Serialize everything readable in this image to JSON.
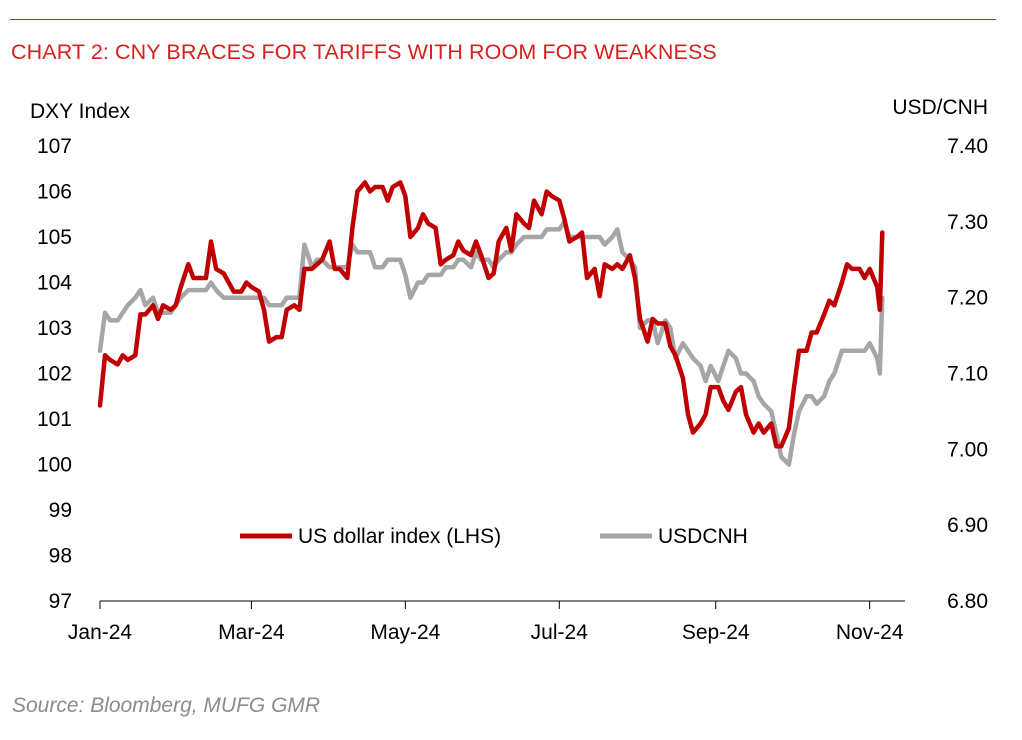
{
  "header": {
    "title": "CHART 2: CNY BRACES FOR TARIFFS WITH ROOM FOR WEAKNESS"
  },
  "footer": {
    "source": "Source: Bloomberg, MUFG GMR"
  },
  "colors": {
    "accent": "#d9201f",
    "dxy": "#c00000",
    "usdcnh": "#a6a6a6",
    "source_text": "#8c8c8c"
  },
  "chart_data": {
    "type": "line",
    "title": "CHART 2: CNY BRACES FOR TARIFFS WITH ROOM FOR WEAKNESS",
    "ylabel_left": "DXY Index",
    "ylabel_right": "USD/CNH",
    "x_ticks": [
      "Jan-24",
      "Mar-24",
      "May-24",
      "Jul-24",
      "Sep-24",
      "Nov-24"
    ],
    "y_left_ticks": [
      "107",
      "106",
      "105",
      "104",
      "103",
      "102",
      "101",
      "100",
      "99",
      "98",
      "97"
    ],
    "y_right_ticks": [
      "7.40",
      "7.30",
      "7.20",
      "7.10",
      "7.00",
      "6.90",
      "6.80"
    ],
    "y_left_lim": [
      97,
      107
    ],
    "y_right_lim": [
      6.8,
      7.4
    ],
    "x_range": [
      "2024-01-01",
      "2024-11-15"
    ],
    "legend_position": "lower-center",
    "grid": false,
    "series": [
      {
        "name": "US dollar index (LHS)",
        "axis": "left",
        "color": "#c00000",
        "points": [
          [
            "2024-01-01",
            101.3
          ],
          [
            "2024-01-03",
            102.4
          ],
          [
            "2024-01-05",
            102.3
          ],
          [
            "2024-01-08",
            102.2
          ],
          [
            "2024-01-10",
            102.4
          ],
          [
            "2024-01-12",
            102.3
          ],
          [
            "2024-01-15",
            102.4
          ],
          [
            "2024-01-17",
            103.3
          ],
          [
            "2024-01-19",
            103.3
          ],
          [
            "2024-01-22",
            103.5
          ],
          [
            "2024-01-24",
            103.2
          ],
          [
            "2024-01-26",
            103.5
          ],
          [
            "2024-01-29",
            103.4
          ],
          [
            "2024-01-31",
            103.5
          ],
          [
            "2024-02-02",
            103.9
          ],
          [
            "2024-02-05",
            104.4
          ],
          [
            "2024-02-07",
            104.1
          ],
          [
            "2024-02-09",
            104.1
          ],
          [
            "2024-02-12",
            104.1
          ],
          [
            "2024-02-14",
            104.9
          ],
          [
            "2024-02-16",
            104.3
          ],
          [
            "2024-02-19",
            104.2
          ],
          [
            "2024-02-21",
            104.0
          ],
          [
            "2024-02-23",
            103.8
          ],
          [
            "2024-02-26",
            103.8
          ],
          [
            "2024-02-28",
            104.0
          ],
          [
            "2024-03-01",
            103.9
          ],
          [
            "2024-03-04",
            103.8
          ],
          [
            "2024-03-06",
            103.4
          ],
          [
            "2024-03-08",
            102.7
          ],
          [
            "2024-03-11",
            102.8
          ],
          [
            "2024-03-13",
            102.8
          ],
          [
            "2024-03-15",
            103.4
          ],
          [
            "2024-03-18",
            103.5
          ],
          [
            "2024-03-20",
            103.4
          ],
          [
            "2024-03-22",
            104.3
          ],
          [
            "2024-03-25",
            104.3
          ],
          [
            "2024-03-27",
            104.4
          ],
          [
            "2024-03-29",
            104.5
          ],
          [
            "2024-04-01",
            104.9
          ],
          [
            "2024-04-03",
            104.3
          ],
          [
            "2024-04-05",
            104.3
          ],
          [
            "2024-04-08",
            104.1
          ],
          [
            "2024-04-10",
            105.2
          ],
          [
            "2024-04-12",
            106.0
          ],
          [
            "2024-04-15",
            106.2
          ],
          [
            "2024-04-17",
            106.0
          ],
          [
            "2024-04-19",
            106.1
          ],
          [
            "2024-04-22",
            106.1
          ],
          [
            "2024-04-24",
            105.8
          ],
          [
            "2024-04-26",
            106.1
          ],
          [
            "2024-04-29",
            106.2
          ],
          [
            "2024-05-01",
            105.9
          ],
          [
            "2024-05-03",
            105.0
          ],
          [
            "2024-05-06",
            105.2
          ],
          [
            "2024-05-08",
            105.5
          ],
          [
            "2024-05-10",
            105.3
          ],
          [
            "2024-05-13",
            105.2
          ],
          [
            "2024-05-15",
            104.4
          ],
          [
            "2024-05-17",
            104.5
          ],
          [
            "2024-05-20",
            104.6
          ],
          [
            "2024-05-22",
            104.9
          ],
          [
            "2024-05-24",
            104.7
          ],
          [
            "2024-05-27",
            104.6
          ],
          [
            "2024-05-29",
            104.9
          ],
          [
            "2024-05-31",
            104.6
          ],
          [
            "2024-06-03",
            104.1
          ],
          [
            "2024-06-05",
            104.2
          ],
          [
            "2024-06-07",
            104.9
          ],
          [
            "2024-06-10",
            105.2
          ],
          [
            "2024-06-12",
            104.7
          ],
          [
            "2024-06-14",
            105.5
          ],
          [
            "2024-06-17",
            105.3
          ],
          [
            "2024-06-19",
            105.2
          ],
          [
            "2024-06-21",
            105.8
          ],
          [
            "2024-06-24",
            105.5
          ],
          [
            "2024-06-26",
            106.0
          ],
          [
            "2024-06-28",
            105.9
          ],
          [
            "2024-07-01",
            105.8
          ],
          [
            "2024-07-03",
            105.4
          ],
          [
            "2024-07-05",
            104.9
          ],
          [
            "2024-07-08",
            105.0
          ],
          [
            "2024-07-10",
            105.1
          ],
          [
            "2024-07-12",
            104.1
          ],
          [
            "2024-07-15",
            104.3
          ],
          [
            "2024-07-17",
            103.7
          ],
          [
            "2024-07-19",
            104.4
          ],
          [
            "2024-07-22",
            104.3
          ],
          [
            "2024-07-24",
            104.4
          ],
          [
            "2024-07-26",
            104.3
          ],
          [
            "2024-07-29",
            104.6
          ],
          [
            "2024-07-31",
            104.1
          ],
          [
            "2024-08-02",
            103.2
          ],
          [
            "2024-08-05",
            102.7
          ],
          [
            "2024-08-07",
            103.2
          ],
          [
            "2024-08-09",
            103.1
          ],
          [
            "2024-08-12",
            103.1
          ],
          [
            "2024-08-14",
            102.6
          ],
          [
            "2024-08-16",
            102.4
          ],
          [
            "2024-08-19",
            101.9
          ],
          [
            "2024-08-21",
            101.1
          ],
          [
            "2024-08-23",
            100.7
          ],
          [
            "2024-08-26",
            100.9
          ],
          [
            "2024-08-28",
            101.1
          ],
          [
            "2024-08-30",
            101.7
          ],
          [
            "2024-09-02",
            101.7
          ],
          [
            "2024-09-04",
            101.4
          ],
          [
            "2024-09-06",
            101.2
          ],
          [
            "2024-09-09",
            101.6
          ],
          [
            "2024-09-11",
            101.7
          ],
          [
            "2024-09-13",
            101.1
          ],
          [
            "2024-09-16",
            100.7
          ],
          [
            "2024-09-18",
            100.9
          ],
          [
            "2024-09-20",
            100.7
          ],
          [
            "2024-09-23",
            100.9
          ],
          [
            "2024-09-25",
            100.4
          ],
          [
            "2024-09-27",
            100.4
          ],
          [
            "2024-09-30",
            100.8
          ],
          [
            "2024-10-02",
            101.7
          ],
          [
            "2024-10-04",
            102.5
          ],
          [
            "2024-10-07",
            102.5
          ],
          [
            "2024-10-09",
            102.9
          ],
          [
            "2024-10-11",
            102.9
          ],
          [
            "2024-10-14",
            103.3
          ],
          [
            "2024-10-16",
            103.6
          ],
          [
            "2024-10-18",
            103.5
          ],
          [
            "2024-10-21",
            104.0
          ],
          [
            "2024-10-23",
            104.4
          ],
          [
            "2024-10-25",
            104.3
          ],
          [
            "2024-10-28",
            104.3
          ],
          [
            "2024-10-30",
            104.1
          ],
          [
            "2024-11-01",
            104.3
          ],
          [
            "2024-11-04",
            103.9
          ],
          [
            "2024-11-05",
            103.4
          ],
          [
            "2024-11-06",
            105.1
          ]
        ]
      },
      {
        "name": "USDCNH",
        "axis": "right",
        "color": "#a6a6a6",
        "points": [
          [
            "2024-01-01",
            7.13
          ],
          [
            "2024-01-03",
            7.18
          ],
          [
            "2024-01-05",
            7.17
          ],
          [
            "2024-01-08",
            7.17
          ],
          [
            "2024-01-10",
            7.18
          ],
          [
            "2024-01-12",
            7.19
          ],
          [
            "2024-01-15",
            7.2
          ],
          [
            "2024-01-17",
            7.21
          ],
          [
            "2024-01-19",
            7.19
          ],
          [
            "2024-01-22",
            7.2
          ],
          [
            "2024-01-24",
            7.18
          ],
          [
            "2024-01-26",
            7.18
          ],
          [
            "2024-01-29",
            7.18
          ],
          [
            "2024-01-31",
            7.19
          ],
          [
            "2024-02-02",
            7.2
          ],
          [
            "2024-02-05",
            7.21
          ],
          [
            "2024-02-07",
            7.21
          ],
          [
            "2024-02-09",
            7.21
          ],
          [
            "2024-02-12",
            7.21
          ],
          [
            "2024-02-14",
            7.22
          ],
          [
            "2024-02-16",
            7.21
          ],
          [
            "2024-02-19",
            7.2
          ],
          [
            "2024-02-21",
            7.2
          ],
          [
            "2024-02-23",
            7.2
          ],
          [
            "2024-02-26",
            7.2
          ],
          [
            "2024-02-28",
            7.2
          ],
          [
            "2024-03-01",
            7.2
          ],
          [
            "2024-03-04",
            7.2
          ],
          [
            "2024-03-06",
            7.2
          ],
          [
            "2024-03-08",
            7.19
          ],
          [
            "2024-03-11",
            7.19
          ],
          [
            "2024-03-13",
            7.19
          ],
          [
            "2024-03-15",
            7.2
          ],
          [
            "2024-03-18",
            7.2
          ],
          [
            "2024-03-20",
            7.2
          ],
          [
            "2024-03-22",
            7.27
          ],
          [
            "2024-03-25",
            7.24
          ],
          [
            "2024-03-27",
            7.25
          ],
          [
            "2024-03-29",
            7.25
          ],
          [
            "2024-04-01",
            7.24
          ],
          [
            "2024-04-03",
            7.24
          ],
          [
            "2024-04-05",
            7.24
          ],
          [
            "2024-04-08",
            7.24
          ],
          [
            "2024-04-10",
            7.27
          ],
          [
            "2024-04-12",
            7.26
          ],
          [
            "2024-04-15",
            7.26
          ],
          [
            "2024-04-17",
            7.26
          ],
          [
            "2024-04-19",
            7.24
          ],
          [
            "2024-04-22",
            7.24
          ],
          [
            "2024-04-24",
            7.25
          ],
          [
            "2024-04-26",
            7.25
          ],
          [
            "2024-04-29",
            7.25
          ],
          [
            "2024-05-01",
            7.23
          ],
          [
            "2024-05-03",
            7.2
          ],
          [
            "2024-05-06",
            7.22
          ],
          [
            "2024-05-08",
            7.22
          ],
          [
            "2024-05-10",
            7.23
          ],
          [
            "2024-05-13",
            7.23
          ],
          [
            "2024-05-15",
            7.23
          ],
          [
            "2024-05-17",
            7.24
          ],
          [
            "2024-05-20",
            7.24
          ],
          [
            "2024-05-22",
            7.25
          ],
          [
            "2024-05-24",
            7.25
          ],
          [
            "2024-05-27",
            7.24
          ],
          [
            "2024-05-29",
            7.26
          ],
          [
            "2024-05-31",
            7.25
          ],
          [
            "2024-06-03",
            7.25
          ],
          [
            "2024-06-05",
            7.24
          ],
          [
            "2024-06-07",
            7.25
          ],
          [
            "2024-06-10",
            7.26
          ],
          [
            "2024-06-12",
            7.26
          ],
          [
            "2024-06-14",
            7.27
          ],
          [
            "2024-06-17",
            7.28
          ],
          [
            "2024-06-19",
            7.28
          ],
          [
            "2024-06-21",
            7.28
          ],
          [
            "2024-06-24",
            7.28
          ],
          [
            "2024-06-26",
            7.29
          ],
          [
            "2024-06-28",
            7.29
          ],
          [
            "2024-07-01",
            7.29
          ],
          [
            "2024-07-03",
            7.3
          ],
          [
            "2024-07-05",
            7.28
          ],
          [
            "2024-07-08",
            7.28
          ],
          [
            "2024-07-10",
            7.28
          ],
          [
            "2024-07-12",
            7.28
          ],
          [
            "2024-07-15",
            7.28
          ],
          [
            "2024-07-17",
            7.28
          ],
          [
            "2024-07-19",
            7.27
          ],
          [
            "2024-07-22",
            7.28
          ],
          [
            "2024-07-24",
            7.29
          ],
          [
            "2024-07-26",
            7.26
          ],
          [
            "2024-07-29",
            7.25
          ],
          [
            "2024-07-31",
            7.24
          ],
          [
            "2024-08-02",
            7.16
          ],
          [
            "2024-08-05",
            7.17
          ],
          [
            "2024-08-07",
            7.17
          ],
          [
            "2024-08-09",
            7.14
          ],
          [
            "2024-08-12",
            7.17
          ],
          [
            "2024-08-14",
            7.16
          ],
          [
            "2024-08-16",
            7.12
          ],
          [
            "2024-08-19",
            7.14
          ],
          [
            "2024-08-21",
            7.13
          ],
          [
            "2024-08-23",
            7.12
          ],
          [
            "2024-08-26",
            7.11
          ],
          [
            "2024-08-28",
            7.09
          ],
          [
            "2024-08-30",
            7.11
          ],
          [
            "2024-09-02",
            7.09
          ],
          [
            "2024-09-04",
            7.11
          ],
          [
            "2024-09-06",
            7.13
          ],
          [
            "2024-09-09",
            7.12
          ],
          [
            "2024-09-11",
            7.1
          ],
          [
            "2024-09-13",
            7.1
          ],
          [
            "2024-09-16",
            7.09
          ],
          [
            "2024-09-18",
            7.07
          ],
          [
            "2024-09-20",
            7.06
          ],
          [
            "2024-09-23",
            7.05
          ],
          [
            "2024-09-25",
            7.02
          ],
          [
            "2024-09-27",
            6.99
          ],
          [
            "2024-09-30",
            6.98
          ],
          [
            "2024-10-02",
            7.02
          ],
          [
            "2024-10-04",
            7.05
          ],
          [
            "2024-10-07",
            7.07
          ],
          [
            "2024-10-09",
            7.07
          ],
          [
            "2024-10-11",
            7.06
          ],
          [
            "2024-10-14",
            7.07
          ],
          [
            "2024-10-16",
            7.09
          ],
          [
            "2024-10-18",
            7.1
          ],
          [
            "2024-10-21",
            7.13
          ],
          [
            "2024-10-23",
            7.13
          ],
          [
            "2024-10-25",
            7.13
          ],
          [
            "2024-10-28",
            7.13
          ],
          [
            "2024-10-30",
            7.13
          ],
          [
            "2024-11-01",
            7.14
          ],
          [
            "2024-11-04",
            7.12
          ],
          [
            "2024-11-05",
            7.1
          ],
          [
            "2024-11-06",
            7.2
          ]
        ]
      }
    ]
  }
}
